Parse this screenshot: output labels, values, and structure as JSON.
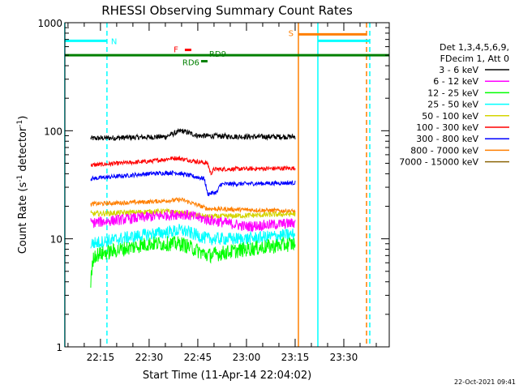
{
  "chart_data": {
    "type": "line",
    "title": "RHESSI Observing Summary Count Rates",
    "xlabel": "Start Time (11-Apr-14 22:04:02)",
    "ylabel_parts": [
      "Count Rate (s",
      "-1",
      " detector",
      "-1",
      ")"
    ],
    "ylabel": "Count Rate (s^-1 detector^-1)",
    "yscale": "log",
    "ylim": [
      1,
      1000
    ],
    "y_ticks": [
      {
        "v": 1,
        "label": "1"
      },
      {
        "v": 10,
        "label": "10"
      },
      {
        "v": 100,
        "label": "100"
      },
      {
        "v": 1000,
        "label": "1000"
      }
    ],
    "xlim": [
      "22:04:02",
      "23:44:00"
    ],
    "x_ticks": [
      "22:15",
      "22:30",
      "22:45",
      "23:00",
      "23:15",
      "23:30"
    ],
    "legend": {
      "placement": "right",
      "header": [
        "Det 1,3,4,5,6,9,",
        "FDecim 1, Att 0"
      ],
      "entries": [
        {
          "label": "3 - 6 keV",
          "color": "#000000"
        },
        {
          "label": "6 - 12 keV",
          "color": "#ff00ff"
        },
        {
          "label": "12 - 25 keV",
          "color": "#00ff00"
        },
        {
          "label": "25 - 50 keV",
          "color": "#00ffff"
        },
        {
          "label": "50 - 100 keV",
          "color": "#d4d400"
        },
        {
          "label": "100 - 300 keV",
          "color": "#ff0000"
        },
        {
          "label": "300 - 800 keV",
          "color": "#0000ff"
        },
        {
          "label": "800 - 7000 keV",
          "color": "#ff7f00"
        },
        {
          "label": "7000 - 15000 keV",
          "color": "#8b6508"
        }
      ]
    },
    "series": [
      {
        "name": "3 - 6 keV",
        "color": "#000000",
        "start": "22:12",
        "end": "23:15",
        "noise": 0.025,
        "points": [
          [
            "22:12",
            85
          ],
          [
            "22:35",
            88
          ],
          [
            "22:40",
            100
          ],
          [
            "22:45",
            90
          ],
          [
            "23:00",
            88
          ],
          [
            "23:15",
            88
          ]
        ]
      },
      {
        "name": "100 - 300 keV",
        "color": "#ff0000",
        "start": "22:12",
        "end": "23:15",
        "noise": 0.02,
        "points": [
          [
            "22:12",
            48
          ],
          [
            "22:30",
            52
          ],
          [
            "22:38",
            56
          ],
          [
            "22:48",
            50
          ],
          [
            "22:49",
            40
          ],
          [
            "22:50",
            44
          ],
          [
            "23:15",
            45
          ]
        ]
      },
      {
        "name": "300 - 800 keV",
        "color": "#0000ff",
        "start": "22:12",
        "end": "23:15",
        "noise": 0.02,
        "points": [
          [
            "22:12",
            36
          ],
          [
            "22:30",
            40
          ],
          [
            "22:38",
            41
          ],
          [
            "22:47",
            36
          ],
          [
            "22:48",
            26
          ],
          [
            "22:51",
            27
          ],
          [
            "22:52",
            32
          ],
          [
            "23:15",
            33
          ]
        ]
      },
      {
        "name": "800 - 7000 keV",
        "color": "#ff7f00",
        "start": "22:12",
        "end": "23:15",
        "noise": 0.02,
        "points": [
          [
            "22:12",
            21
          ],
          [
            "22:30",
            22
          ],
          [
            "22:40",
            23
          ],
          [
            "22:48",
            19
          ],
          [
            "23:15",
            18
          ]
        ]
      },
      {
        "name": "50 - 100 keV",
        "color": "#d4d400",
        "start": "22:12",
        "end": "23:15",
        "noise": 0.025,
        "points": [
          [
            "22:12",
            17
          ],
          [
            "22:35",
            18
          ],
          [
            "22:48",
            16
          ],
          [
            "23:15",
            17
          ]
        ]
      },
      {
        "name": "6 - 12 keV",
        "color": "#ff00ff",
        "start": "22:12",
        "end": "23:15",
        "noise": 0.05,
        "points": [
          [
            "22:12",
            14
          ],
          [
            "22:30",
            16
          ],
          [
            "22:40",
            17
          ],
          [
            "22:48",
            15
          ],
          [
            "23:00",
            13
          ],
          [
            "23:15",
            14
          ]
        ]
      },
      {
        "name": "25 - 50 keV",
        "color": "#00ffff",
        "start": "22:12",
        "end": "23:15",
        "noise": 0.06,
        "points": [
          [
            "22:12",
            9
          ],
          [
            "22:30",
            11
          ],
          [
            "22:40",
            12
          ],
          [
            "22:48",
            10
          ],
          [
            "23:00",
            10
          ],
          [
            "23:15",
            11
          ]
        ]
      },
      {
        "name": "12 - 25 keV",
        "color": "#00ff00",
        "start": "22:12",
        "end": "23:15",
        "noise": 0.07,
        "points": [
          [
            "22:12",
            4
          ],
          [
            "22:13",
            7
          ],
          [
            "22:30",
            9
          ],
          [
            "22:40",
            9
          ],
          [
            "22:48",
            7
          ],
          [
            "23:00",
            8
          ],
          [
            "23:15",
            9
          ]
        ]
      }
    ],
    "flag_bars": [
      {
        "label": "N",
        "color": "#00ffff",
        "y": 680,
        "segments": [
          [
            "22:04",
            "22:17"
          ],
          [
            "23:22",
            "23:38"
          ]
        ]
      },
      {
        "label": "S",
        "color": "#ff7f00",
        "y": 780,
        "segments": [
          [
            "23:16",
            "23:37"
          ]
        ]
      },
      {
        "label": "F",
        "color": "#ff0000",
        "y": 560,
        "segments": [
          [
            "22:41",
            "22:43"
          ]
        ]
      },
      {
        "label": "RD9",
        "color": "#008000",
        "y": 500,
        "segments": [
          [
            "22:04",
            "23:44"
          ]
        ]
      },
      {
        "label": "RD6",
        "color": "#008000",
        "y": 440,
        "segments": [
          [
            "22:46",
            "22:48"
          ]
        ]
      }
    ],
    "vlines": [
      {
        "x": "22:04",
        "color": "#00ffff",
        "style": "solid"
      },
      {
        "x": "22:17",
        "color": "#00ffff",
        "style": "dashed"
      },
      {
        "x": "23:16",
        "color": "#ff7f00",
        "style": "solid"
      },
      {
        "x": "23:22",
        "color": "#00ffff",
        "style": "solid"
      },
      {
        "x": "23:37",
        "color": "#ff7f00",
        "style": "dashed"
      },
      {
        "x": "23:38",
        "color": "#00ffff",
        "style": "dashed"
      }
    ],
    "grid": false,
    "timestamp": "22-Oct-2021 09:41"
  }
}
